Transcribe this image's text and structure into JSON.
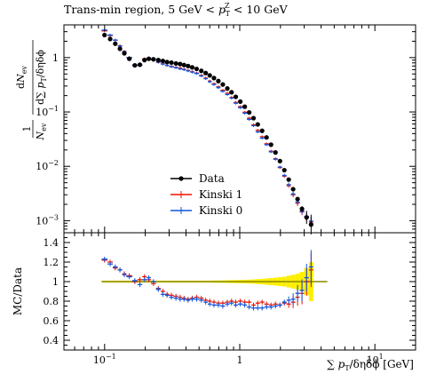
{
  "chart_data": {
    "type": "line",
    "title_parts": [
      "Trans-min region, 5 GeV < ",
      "p",
      "T",
      "Z",
      " < 10 GeV"
    ],
    "xlabel": "∑ pT / δη δϕ [GeV]",
    "xscale": "log",
    "xlim": [
      0.05,
      20
    ],
    "x_tick_labels": [
      {
        "value": 0.1,
        "mantissa": "10",
        "exponent": "−1"
      },
      {
        "value": 1,
        "mantissa": "1",
        "exponent": ""
      },
      {
        "value": 10,
        "mantissa": "10",
        "exponent": "1"
      }
    ],
    "main": {
      "yscale": "log",
      "ylim": [
        0.0006,
        4
      ],
      "ylabel": "1 / N_ev · dN_ev / d∑pT/δηδϕ",
      "y_tick_labels": [
        {
          "value": 1,
          "mantissa": "1",
          "exponent": ""
        },
        {
          "value": 0.1,
          "mantissa": "10",
          "exponent": "−1"
        },
        {
          "value": 0.01,
          "mantissa": "10",
          "exponent": "−2"
        },
        {
          "value": 0.001,
          "mantissa": "10",
          "exponent": "−3"
        }
      ],
      "legend": {
        "placement": "lower-left",
        "entries": [
          "Data",
          "Kinski 1",
          "Kinski 0"
        ]
      }
    },
    "ratio": {
      "ylabel": "MC/Data",
      "ylim": [
        0.3,
        1.5
      ],
      "y_ticks": [
        0.4,
        0.6,
        0.8,
        1.0,
        1.2,
        1.4
      ],
      "y_tick_labels": [
        "0.4",
        "0.6",
        "0.8",
        "1",
        "1.2",
        "1.4"
      ]
    },
    "bin_edges": [
      0.095,
      0.105,
      0.115,
      0.125,
      0.135,
      0.145,
      0.16,
      0.175,
      0.19,
      0.205,
      0.22,
      0.24,
      0.26,
      0.28,
      0.3,
      0.325,
      0.35,
      0.375,
      0.4,
      0.43,
      0.46,
      0.5,
      0.54,
      0.58,
      0.62,
      0.67,
      0.72,
      0.78,
      0.84,
      0.9,
      0.97,
      1.05,
      1.13,
      1.22,
      1.31,
      1.41,
      1.52,
      1.64,
      1.77,
      1.91,
      2.06,
      2.22,
      2.39,
      2.58,
      2.78,
      3.0,
      3.25,
      3.5,
      3.8,
      4.1,
      4.45
    ],
    "series": [
      {
        "name": "Data",
        "color": "#000000",
        "marker": "circle",
        "values": [
          2.6,
          2.2,
          1.8,
          1.45,
          1.2,
          0.95,
          0.72,
          0.74,
          0.9,
          0.95,
          0.93,
          0.9,
          0.87,
          0.83,
          0.81,
          0.78,
          0.76,
          0.73,
          0.7,
          0.66,
          0.62,
          0.57,
          0.52,
          0.47,
          0.42,
          0.37,
          0.32,
          0.27,
          0.23,
          0.19,
          0.155,
          0.125,
          0.098,
          0.077,
          0.059,
          0.045,
          0.034,
          0.025,
          0.018,
          0.0125,
          0.0085,
          0.0057,
          0.0038,
          0.0025,
          0.00165,
          0.00115,
          0.00085
        ]
      },
      {
        "name": "Kinski 1",
        "color": "#ee1100",
        "values": [
          3.1,
          2.55,
          2.1,
          1.65,
          1.3,
          1.0,
          0.72,
          0.74,
          0.95,
          0.98,
          0.92,
          0.82,
          0.77,
          0.72,
          0.69,
          0.66,
          0.64,
          0.61,
          0.58,
          0.55,
          0.52,
          0.47,
          0.42,
          0.37,
          0.33,
          0.29,
          0.25,
          0.22,
          0.185,
          0.15,
          0.125,
          0.099,
          0.077,
          0.058,
          0.046,
          0.035,
          0.026,
          0.019,
          0.0138,
          0.0095,
          0.0066,
          0.0044,
          0.003,
          0.0021,
          0.00145,
          0.00115,
          0.00095
        ]
      },
      {
        "name": "Kinski 0",
        "color": "#1155dd",
        "values": [
          3.2,
          2.6,
          2.1,
          1.62,
          1.28,
          1.0,
          0.73,
          0.72,
          0.92,
          0.99,
          0.93,
          0.83,
          0.76,
          0.72,
          0.68,
          0.65,
          0.62,
          0.6,
          0.57,
          0.54,
          0.51,
          0.46,
          0.41,
          0.36,
          0.32,
          0.28,
          0.24,
          0.21,
          0.18,
          0.145,
          0.12,
          0.095,
          0.073,
          0.056,
          0.043,
          0.033,
          0.025,
          0.0185,
          0.0135,
          0.0097,
          0.0068,
          0.0046,
          0.0031,
          0.0022,
          0.0015,
          0.0012,
          0.00098
        ]
      }
    ],
    "ratio_series": [
      {
        "name": "Kinski 1",
        "color": "#ee1100",
        "values": [
          1.22,
          1.2,
          1.14,
          1.12,
          1.08,
          1.06,
          1.0,
          1.02,
          1.05,
          1.02,
          0.98,
          0.93,
          0.9,
          0.87,
          0.86,
          0.85,
          0.84,
          0.83,
          0.82,
          0.83,
          0.84,
          0.83,
          0.81,
          0.8,
          0.79,
          0.78,
          0.78,
          0.79,
          0.8,
          0.79,
          0.8,
          0.79,
          0.79,
          0.76,
          0.78,
          0.79,
          0.77,
          0.76,
          0.77,
          0.76,
          0.78,
          0.77,
          0.79,
          0.84,
          0.88,
          1.0,
          1.12
        ]
      },
      {
        "name": "Kinski 0",
        "color": "#1155dd",
        "values": [
          1.23,
          1.18,
          1.15,
          1.12,
          1.07,
          1.05,
          1.01,
          0.97,
          1.02,
          1.04,
          1.0,
          0.92,
          0.87,
          0.86,
          0.84,
          0.83,
          0.82,
          0.82,
          0.81,
          0.82,
          0.82,
          0.81,
          0.79,
          0.77,
          0.76,
          0.76,
          0.75,
          0.77,
          0.78,
          0.76,
          0.77,
          0.76,
          0.74,
          0.73,
          0.73,
          0.73,
          0.74,
          0.74,
          0.75,
          0.76,
          0.79,
          0.81,
          0.82,
          0.88,
          0.91,
          1.04,
          1.15
        ]
      }
    ],
    "data_uncertainty_band": {
      "color": "#ffee00",
      "halfwidth": [
        0.01,
        0.01,
        0.01,
        0.01,
        0.01,
        0.01,
        0.01,
        0.01,
        0.01,
        0.01,
        0.01,
        0.01,
        0.01,
        0.01,
        0.01,
        0.01,
        0.01,
        0.01,
        0.01,
        0.01,
        0.01,
        0.01,
        0.01,
        0.01,
        0.012,
        0.012,
        0.013,
        0.014,
        0.015,
        0.016,
        0.017,
        0.018,
        0.02,
        0.022,
        0.025,
        0.028,
        0.032,
        0.036,
        0.04,
        0.045,
        0.05,
        0.06,
        0.07,
        0.08,
        0.1,
        0.14,
        0.2
      ]
    }
  }
}
